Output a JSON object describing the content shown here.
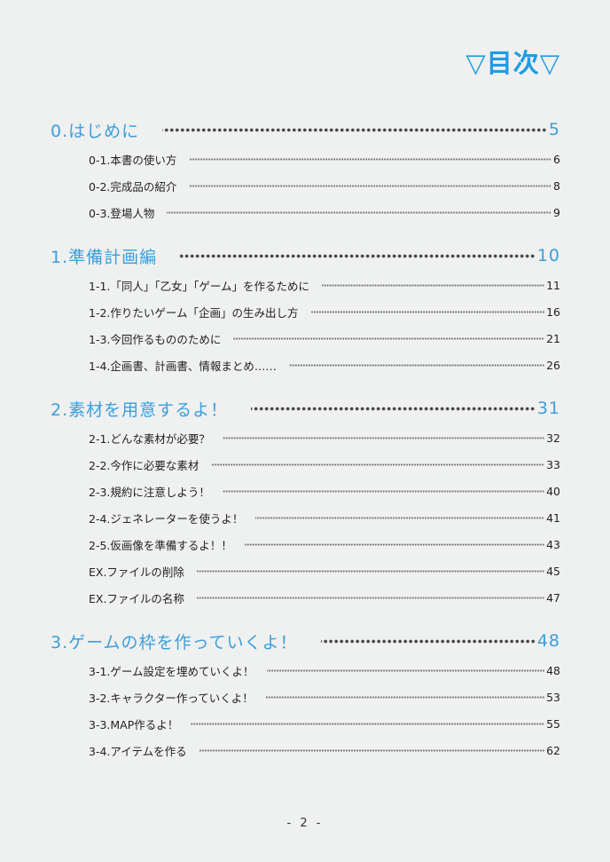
{
  "title": "▽目次▽",
  "sections": [
    {
      "label": "0.はじめに",
      "page": "5",
      "items": [
        {
          "label": "0-1.本書の使い方",
          "page": "6"
        },
        {
          "label": "0-2.完成品の紹介",
          "page": "8"
        },
        {
          "label": "0-3.登場人物",
          "page": "9"
        }
      ]
    },
    {
      "label": "1.準備計画編",
      "page": "10",
      "items": [
        {
          "label": "1-1.「同人」「乙女」「ゲーム」を作るために",
          "page": "11"
        },
        {
          "label": "1-2.作りたいゲーム「企画」の生み出し方",
          "page": "16"
        },
        {
          "label": "1-3.今回作るもののために",
          "page": "21"
        },
        {
          "label": "1-4.企画書、計画書、情報まとめ……",
          "page": "26"
        }
      ]
    },
    {
      "label": "2.素材を用意するよ！",
      "page": "31",
      "items": [
        {
          "label": "2-1.どんな素材が必要？",
          "page": "32"
        },
        {
          "label": "2-2.今作に必要な素材",
          "page": "33"
        },
        {
          "label": "2-3.規約に注意しよう！",
          "page": "40"
        },
        {
          "label": "2-4.ジェネレーターを使うよ！",
          "page": "41"
        },
        {
          "label": "2-5.仮画像を準備するよ！！",
          "page": "43"
        },
        {
          "label": "EX.ファイルの削除",
          "page": "45"
        },
        {
          "label": "EX.ファイルの名称",
          "page": "47"
        }
      ]
    },
    {
      "label": "3.ゲームの枠を作っていくよ！",
      "page": "48",
      "items": [
        {
          "label": "3-1.ゲーム設定を埋めていくよ！",
          "page": "48"
        },
        {
          "label": "3-2.キャラクター作っていくよ！",
          "page": "53"
        },
        {
          "label": "3-3.MAP作るよ！",
          "page": "55"
        },
        {
          "label": "3-4.アイテムを作る",
          "page": "62"
        }
      ]
    }
  ],
  "footer": "- 2 -",
  "colors": {
    "accent": "#1e9be6",
    "section": "#3a9fdc",
    "background": "#eff0f0"
  }
}
